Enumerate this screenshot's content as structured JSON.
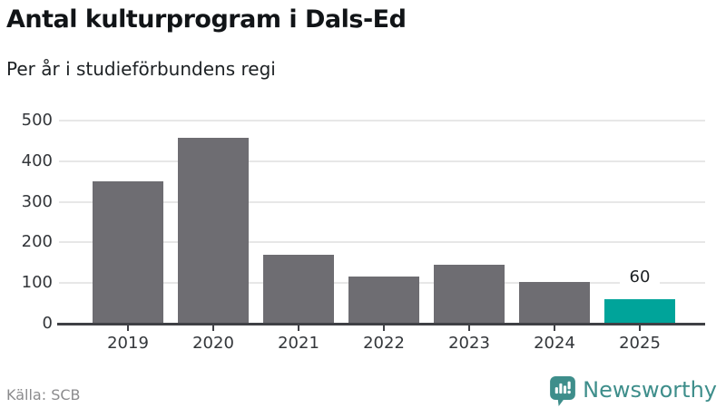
{
  "header": {
    "title": "Antal kulturprogram i Dals-Ed",
    "subtitle": "Per år i studieförbundens regi"
  },
  "footer": {
    "source": "Källa: SCB",
    "brand_name": "Newsworthy"
  },
  "colors": {
    "bar": "#6e6d72",
    "highlight": "#00a49a",
    "brand": "#3e8e8b",
    "grid": "#e7e7e7",
    "axis": "#3f4045"
  },
  "chart_data": {
    "type": "bar",
    "title": "Antal kulturprogram i Dals-Ed",
    "subtitle": "Per år i studieförbundens regi",
    "categories": [
      "2019",
      "2020",
      "2021",
      "2022",
      "2023",
      "2024",
      "2025"
    ],
    "values": [
      350,
      457,
      170,
      115,
      146,
      103,
      60
    ],
    "highlight_index": 6,
    "data_labels": {
      "2025": "60"
    },
    "xlabel": "",
    "ylabel": "",
    "ylim": [
      0,
      500
    ],
    "yticks": [
      0,
      100,
      200,
      300,
      400,
      500
    ],
    "grid": true,
    "legend": false,
    "source": "Källa: SCB"
  }
}
